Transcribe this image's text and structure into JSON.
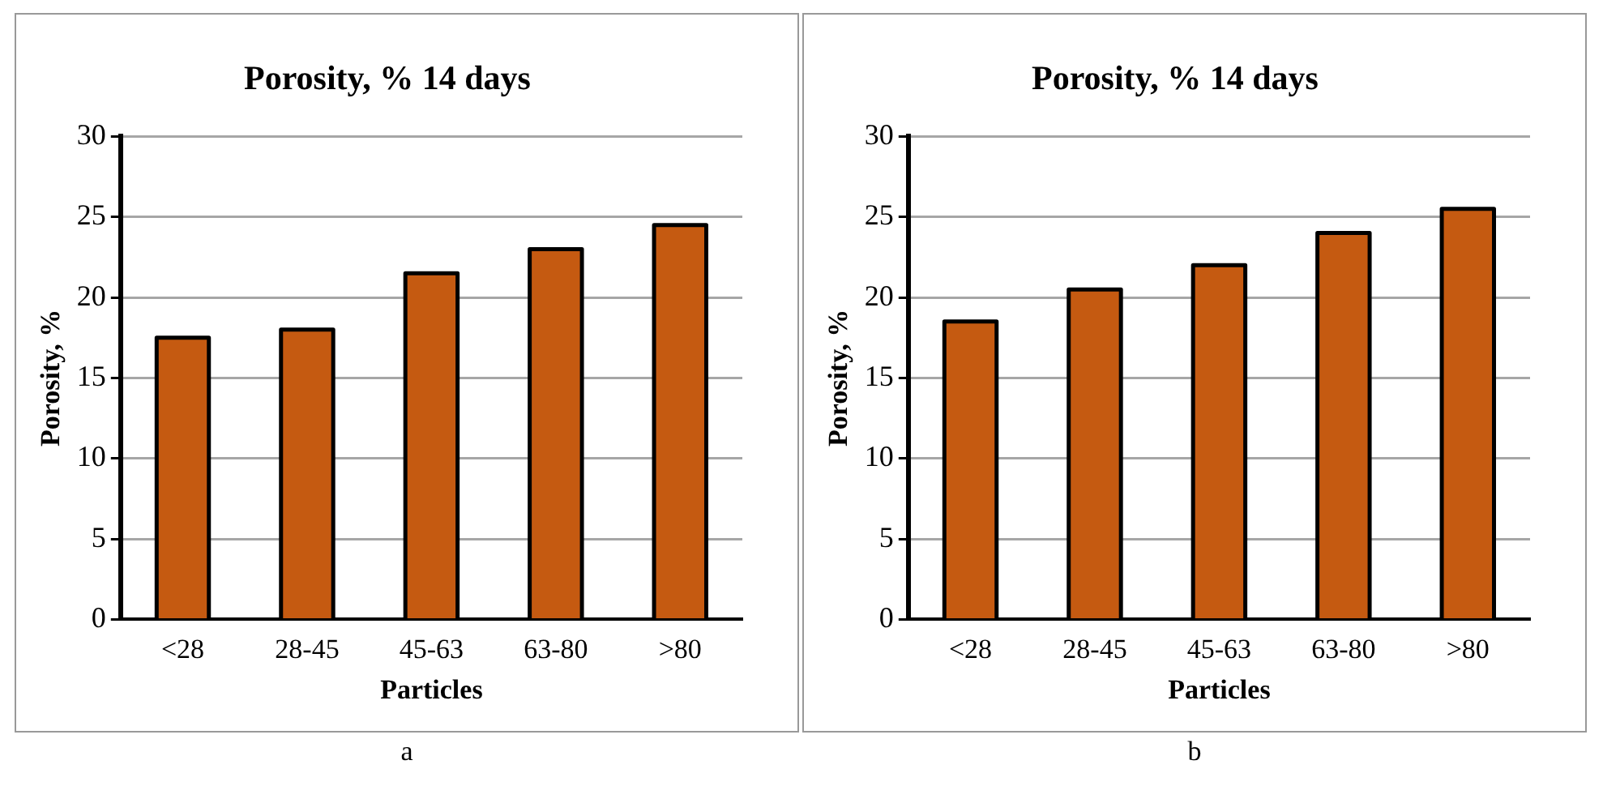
{
  "chart_data": [
    {
      "type": "bar",
      "title": "Porosity, % 14 days",
      "xlabel": "Particles",
      "ylabel": "Porosity, %",
      "categories": [
        "<28",
        "28-45",
        "45-63",
        "63-80",
        ">80"
      ],
      "values": [
        17.5,
        18,
        21.5,
        23,
        24.5
      ],
      "color": "#c55a11",
      "ylim": [
        0,
        30
      ],
      "yticks": [
        0,
        5,
        10,
        15,
        20,
        25,
        30
      ],
      "grid": "y",
      "annotations": [
        "a"
      ]
    },
    {
      "type": "bar",
      "title": "Porosity, % 14 days",
      "xlabel": "Particles",
      "ylabel": "Porosity, %",
      "categories": [
        "<28",
        "28-45",
        "45-63",
        "63-80",
        ">80"
      ],
      "values": [
        18.5,
        20.5,
        22,
        24,
        25.5
      ],
      "color": "#c55a11",
      "ylim": [
        0,
        30
      ],
      "yticks": [
        0,
        5,
        10,
        15,
        20,
        25,
        30
      ],
      "grid": "y",
      "annotations": [
        "b"
      ]
    }
  ]
}
